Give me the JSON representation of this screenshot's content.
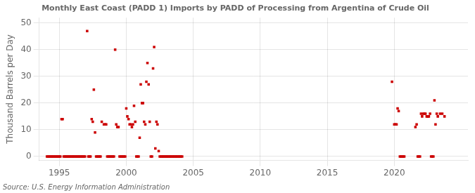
{
  "chart_data": {
    "type": "scatter",
    "title": "Monthly East Coast (PADD 1) Imports by PADD of Processing from Argentina of Crude Oil",
    "y_label": "Thousand Barrels per Day",
    "annotation": "Source: U.S. Energy Information Administration",
    "color": "#cc0000",
    "marker": "square",
    "grid": true,
    "xlim": [
      1993.5,
      2025.5
    ],
    "ylim": [
      -1.5,
      52
    ],
    "xticks": [
      1995,
      2000,
      2005,
      2010,
      2015,
      2020
    ],
    "yticks": [
      0,
      10,
      20,
      30,
      40,
      50
    ],
    "x": [
      1994.08,
      1994.17,
      1994.25,
      1994.33,
      1994.42,
      1994.5,
      1994.58,
      1994.67,
      1994.75,
      1994.83,
      1994.92,
      1995.0,
      1995.08,
      1995.17,
      1995.25,
      1995.33,
      1995.42,
      1995.5,
      1995.58,
      1995.67,
      1995.75,
      1995.83,
      1995.92,
      1996.0,
      1996.08,
      1996.17,
      1996.25,
      1996.33,
      1996.42,
      1996.5,
      1996.58,
      1996.67,
      1996.75,
      1996.83,
      1996.92,
      1997.08,
      1997.17,
      1997.25,
      1997.33,
      1997.42,
      1997.5,
      1997.58,
      1997.67,
      1997.75,
      1997.83,
      1997.92,
      1998.0,
      1998.08,
      1998.17,
      1998.33,
      1998.42,
      1998.5,
      1998.58,
      1998.67,
      1998.75,
      1998.83,
      1998.92,
      1999.0,
      1999.08,
      1999.17,
      1999.25,
      1999.33,
      1999.42,
      1999.5,
      1999.58,
      1999.67,
      1999.75,
      1999.83,
      1999.92,
      2000.0,
      2000.08,
      2000.17,
      2000.25,
      2000.33,
      2000.42,
      2000.5,
      2000.58,
      2000.67,
      2000.75,
      2000.83,
      2000.92,
      2001.0,
      2001.08,
      2001.17,
      2001.25,
      2001.33,
      2001.42,
      2001.5,
      2001.58,
      2001.67,
      2001.75,
      2001.83,
      2001.92,
      2002.0,
      2002.08,
      2002.17,
      2002.25,
      2002.33,
      2002.42,
      2002.5,
      2002.58,
      2002.67,
      2002.75,
      2002.83,
      2002.92,
      2003.0,
      2003.08,
      2003.17,
      2003.25,
      2003.33,
      2003.42,
      2003.5,
      2003.58,
      2003.67,
      2003.75,
      2003.83,
      2003.92,
      2004.0,
      2004.08,
      2004.17,
      2019.83,
      2020.0,
      2020.08,
      2020.17,
      2020.25,
      2020.33,
      2020.42,
      2020.5,
      2020.58,
      2020.67,
      2020.75,
      2021.58,
      2021.67,
      2021.75,
      2021.83,
      2021.92,
      2022.0,
      2022.08,
      2022.17,
      2022.25,
      2022.33,
      2022.42,
      2022.5,
      2022.58,
      2022.67,
      2022.75,
      2022.83,
      2022.92,
      2023.0,
      2023.08,
      2023.17,
      2023.25,
      2023.42,
      2023.58,
      2023.75
    ],
    "values": [
      0,
      0,
      0,
      0,
      0,
      0,
      0,
      0,
      0,
      0,
      0,
      0,
      0,
      14,
      14,
      0,
      0,
      0,
      0,
      0,
      0,
      0,
      0,
      0,
      0,
      0,
      0,
      0,
      0,
      0,
      0,
      0,
      0,
      0,
      0,
      47,
      0,
      0,
      0,
      14,
      13,
      25,
      9,
      0,
      0,
      0,
      0,
      0,
      13,
      12,
      12,
      12,
      0,
      0,
      0,
      0,
      0,
      0,
      0,
      40,
      12,
      11,
      11,
      0,
      0,
      0,
      0,
      0,
      0,
      18,
      15,
      14,
      12,
      12,
      11,
      12,
      19,
      13,
      0,
      0,
      0,
      7,
      27,
      20,
      20,
      13,
      12,
      28,
      35,
      27,
      13,
      0,
      0,
      33,
      41,
      3,
      13,
      12,
      2,
      0,
      0,
      0,
      0,
      0,
      0,
      0,
      0,
      0,
      0,
      0,
      0,
      0,
      0,
      0,
      0,
      0,
      0,
      0,
      0,
      0,
      28,
      12,
      12,
      12,
      18,
      17,
      0,
      0,
      0,
      0,
      0,
      11,
      12,
      0,
      0,
      0,
      16,
      15,
      16,
      16,
      16,
      15,
      15,
      15,
      16,
      0,
      0,
      0,
      21,
      12,
      16,
      15,
      16,
      16,
      15
    ]
  }
}
